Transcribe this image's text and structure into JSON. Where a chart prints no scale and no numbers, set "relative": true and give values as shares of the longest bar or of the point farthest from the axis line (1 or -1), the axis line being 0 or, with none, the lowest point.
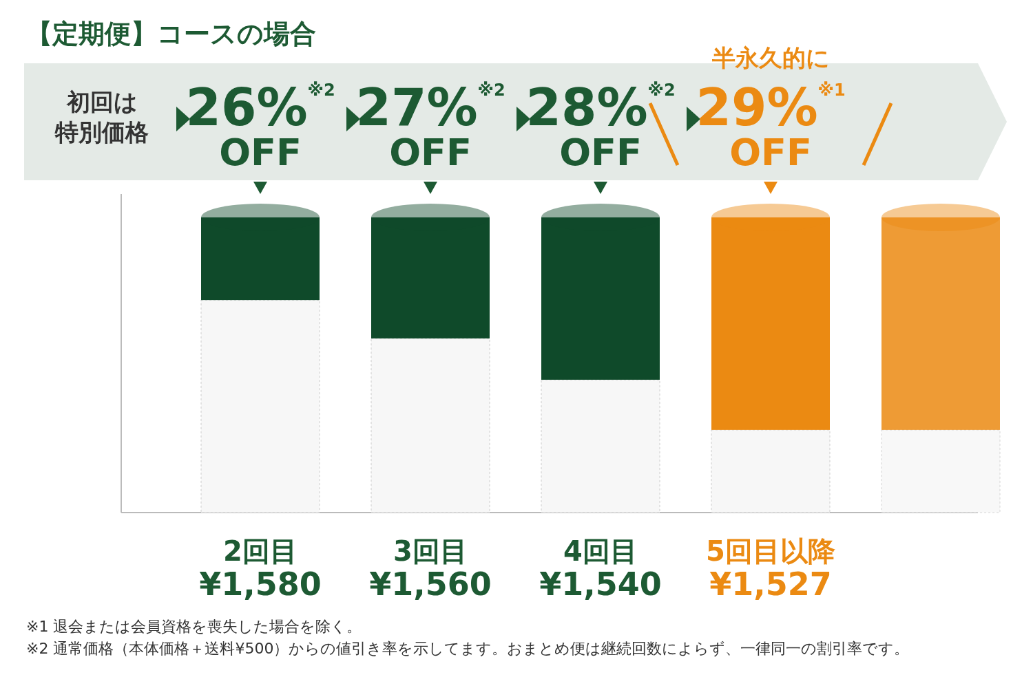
{
  "chart_data": {
    "type": "bar",
    "stacked": true,
    "relative": true,
    "title": "【定期便】コースの場合",
    "categories": [
      "2回目",
      "3回目",
      "4回目",
      "5回目以降",
      null
    ],
    "series": [
      {
        "color": "#f7f7f7",
        "values": [
          0.72,
          0.59,
          0.45,
          0.28,
          0.28
        ]
      },
      {
        "colors": [
          "#0f4a2a",
          "#0f4a2a",
          "#0f4a2a",
          "#eb8a12",
          "#eb8a12"
        ],
        "values": [
          0.28,
          0.41,
          0.55,
          0.72,
          0.72
        ]
      }
    ],
    "annotations": [
      {
        "text": "¥1,580",
        "x": "2回目",
        "y": 0
      },
      {
        "text": "¥1,560",
        "x": "3回目",
        "y": 0
      },
      {
        "text": "¥1,540",
        "x": "4回目",
        "y": 0
      },
      {
        "text": "¥1,527",
        "x": "5回目以降",
        "y": 0
      },
      {
        "text": "26%$^{※2}$",
        "x": "2回目",
        "y": 1
      },
      {
        "text": "27%$^{※2}$",
        "x": "3回目",
        "y": 1
      },
      {
        "text": "28%$^{※2}$",
        "x": "4回目",
        "y": 1
      },
      {
        "text": "29%$^{※1}$",
        "x": "5回目以降",
        "y": 1
      },
      {
        "text": "OFF",
        "x": "2回目",
        "y": 1
      },
      {
        "text": "OFF",
        "x": "3回目",
        "y": 1
      },
      {
        "text": "OFF",
        "x": "4回目",
        "y": 1
      },
      {
        "text": "OFF",
        "x": "5回目以降",
        "y": 1
      },
      "初回は特別価格",
      "半永久的に",
      "※1 退会または会員資格を喪失した場合を除く。",
      "※2 通常価格（本体価格＋送料¥500）からの値引き率を示してます。おまとめ便は継続回数によらず、一律同一の割引率です。"
    ]
  }
}
